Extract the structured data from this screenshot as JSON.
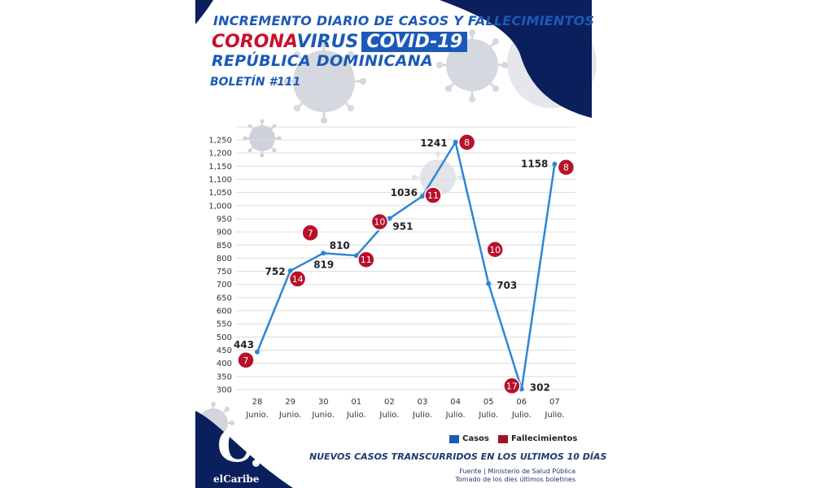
{
  "header": {
    "line1": "INCREMENTO DIARIO DE CASOS Y FALLECIMIENTOS",
    "brand_red": "CORONA",
    "brand_blue": "VIRUS",
    "brand_box": "COVID-19",
    "country": "REPÚBLICA DOMINICANA",
    "bulletin": "BOLETÍN #111"
  },
  "chart_data": {
    "type": "line",
    "categories": [
      [
        "28",
        "Junio."
      ],
      [
        "29",
        "Junio."
      ],
      [
        "30",
        "Junio."
      ],
      [
        "01",
        "Julio."
      ],
      [
        "02",
        "Julio."
      ],
      [
        "03",
        "Julio."
      ],
      [
        "04",
        "Julio."
      ],
      [
        "05",
        "Julio."
      ],
      [
        "06",
        "Julio."
      ],
      [
        "07",
        "Julio."
      ]
    ],
    "series": [
      {
        "name": "Casos",
        "values": [
          443,
          752,
          819,
          810,
          951,
          1036,
          1241,
          703,
          302,
          1158
        ]
      },
      {
        "name": "Fallecimientos",
        "values": [
          7,
          14,
          7,
          11,
          10,
          11,
          8,
          10,
          17,
          8
        ]
      }
    ],
    "ylim": [
      300,
      1250
    ],
    "yticks": [
      "300",
      "350",
      "400",
      "450",
      "500",
      "550",
      "600",
      "650",
      "700",
      "750",
      "800",
      "850",
      "900",
      "950",
      "1,000",
      "1,050",
      "1,100",
      "1,150",
      "1,200",
      "1,250"
    ],
    "grid": true,
    "legend": "bottom-right"
  },
  "legend": {
    "cases": "Casos",
    "deaths": "Fallecimientos"
  },
  "footer": {
    "title": "NUEVOS CASOS TRANSCURRIDOS EN LOS ULTIMOS 10 DÍAS",
    "source1": "Fuente | Ministerio de Salud Pública",
    "source2": "Tomado de  los dies últimos boletines"
  },
  "logo": {
    "letter": "C",
    "text": "elCaribe"
  },
  "colors": {
    "line": "#2e86d4",
    "death_badge": "#b7102b",
    "cases_legend": "#1b59b8",
    "deaths_legend": "#a3121f",
    "navy": "#0b1f5c",
    "virus": "#d3d5dc"
  }
}
